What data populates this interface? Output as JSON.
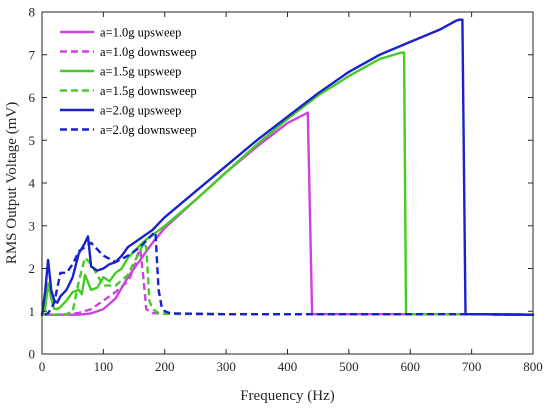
{
  "chart_data": {
    "type": "line",
    "title": "",
    "xlabel": "Frequency (Hz)",
    "ylabel": "RMS Output Voltage (mV)",
    "xlim": [
      0,
      800
    ],
    "ylim": [
      0,
      8
    ],
    "xticks": [
      "0",
      "100",
      "200",
      "300",
      "400",
      "500",
      "600",
      "700",
      "800"
    ],
    "yticks": [
      "0",
      "1",
      "2",
      "3",
      "4",
      "5",
      "6",
      "7",
      "8"
    ],
    "grid": false,
    "legend_position": "top-left",
    "series": [
      {
        "name": "a=1.0g upsweep",
        "color": "#cc44dd",
        "dash": "solid",
        "x": [
          0,
          60,
          80,
          100,
          120,
          140,
          160,
          180,
          200,
          250,
          300,
          350,
          400,
          420,
          430,
          433,
          440,
          450,
          500,
          600,
          700,
          800
        ],
        "y": [
          0.92,
          0.92,
          0.95,
          1.05,
          1.3,
          1.8,
          2.2,
          2.6,
          2.95,
          3.6,
          4.25,
          4.85,
          5.4,
          5.55,
          5.62,
          5.65,
          0.93,
          0.93,
          0.93,
          0.93,
          0.93,
          0.92
        ]
      },
      {
        "name": "a=1.0g downsweep",
        "color": "#cc44dd",
        "dash": "dashed",
        "x": [
          800,
          700,
          600,
          500,
          400,
          300,
          200,
          180,
          170,
          165,
          160,
          155,
          150,
          140,
          120,
          100,
          80,
          60,
          40,
          20,
          0
        ],
        "y": [
          0.92,
          0.93,
          0.93,
          0.93,
          0.93,
          0.93,
          0.94,
          0.96,
          1.05,
          1.8,
          2.45,
          2.3,
          2.0,
          1.7,
          1.45,
          1.25,
          1.05,
          0.96,
          0.93,
          0.92,
          0.92
        ]
      },
      {
        "name": "a=1.5g upsweep",
        "color": "#44cc22",
        "dash": "solid",
        "x": [
          0,
          5,
          10,
          15,
          20,
          25,
          30,
          40,
          50,
          60,
          65,
          70,
          80,
          90,
          100,
          110,
          120,
          130,
          140,
          150,
          160,
          170,
          180,
          200,
          250,
          300,
          350,
          400,
          450,
          500,
          550,
          585,
          590,
          593,
          600,
          700,
          800
        ],
        "y": [
          0.92,
          1.05,
          1.65,
          1.3,
          1.05,
          1.05,
          1.1,
          1.25,
          1.45,
          1.5,
          1.4,
          1.85,
          1.5,
          1.55,
          1.8,
          1.7,
          1.9,
          2.0,
          2.25,
          2.4,
          2.55,
          2.68,
          2.78,
          3.0,
          3.6,
          4.25,
          4.9,
          5.5,
          6.05,
          6.5,
          6.9,
          7.05,
          7.05,
          0.93,
          0.93,
          0.93,
          0.92
        ]
      },
      {
        "name": "a=1.5g downsweep",
        "color": "#44cc22",
        "dash": "dashed",
        "x": [
          800,
          700,
          600,
          500,
          400,
          300,
          200,
          190,
          180,
          175,
          170,
          165,
          160,
          150,
          140,
          120,
          100,
          80,
          70,
          60,
          50,
          40,
          20,
          0
        ],
        "y": [
          0.92,
          0.93,
          0.93,
          0.93,
          0.93,
          0.93,
          0.94,
          0.96,
          1.05,
          1.25,
          2.5,
          2.6,
          2.4,
          2.15,
          1.85,
          1.6,
          1.6,
          2.1,
          2.25,
          1.7,
          1.0,
          0.93,
          0.92,
          0.92
        ]
      },
      {
        "name": "a=2.0g upsweep",
        "color": "#1a22cc",
        "dash": "solid",
        "x": [
          0,
          5,
          10,
          15,
          20,
          25,
          30,
          40,
          50,
          60,
          70,
          75,
          80,
          90,
          100,
          110,
          120,
          130,
          140,
          150,
          160,
          170,
          180,
          190,
          200,
          250,
          300,
          350,
          400,
          450,
          500,
          550,
          600,
          650,
          675,
          680,
          685,
          690,
          700,
          800
        ],
        "y": [
          0.92,
          1.45,
          2.2,
          1.5,
          1.25,
          1.2,
          1.35,
          1.5,
          1.8,
          2.35,
          2.6,
          2.75,
          2.05,
          1.95,
          2.0,
          2.1,
          2.15,
          2.3,
          2.5,
          2.6,
          2.7,
          2.8,
          2.9,
          3.05,
          3.2,
          3.8,
          4.4,
          5.0,
          5.55,
          6.1,
          6.6,
          7.0,
          7.3,
          7.6,
          7.8,
          7.82,
          7.82,
          0.93,
          0.93,
          0.92
        ]
      },
      {
        "name": "a=2.0g downsweep",
        "color": "#1a22cc",
        "dash": "dashed",
        "x": [
          800,
          700,
          600,
          500,
          400,
          300,
          210,
          200,
          195,
          190,
          188,
          185,
          180,
          170,
          160,
          140,
          120,
          100,
          80,
          60,
          50,
          40,
          30,
          20,
          10,
          5,
          0
        ],
        "y": [
          0.92,
          0.93,
          0.93,
          0.93,
          0.93,
          0.93,
          0.95,
          1.0,
          1.1,
          1.5,
          2.0,
          2.85,
          2.8,
          2.65,
          2.5,
          2.3,
          2.15,
          2.3,
          2.6,
          2.4,
          2.1,
          1.9,
          1.9,
          1.2,
          0.95,
          0.93,
          0.92
        ]
      }
    ]
  }
}
